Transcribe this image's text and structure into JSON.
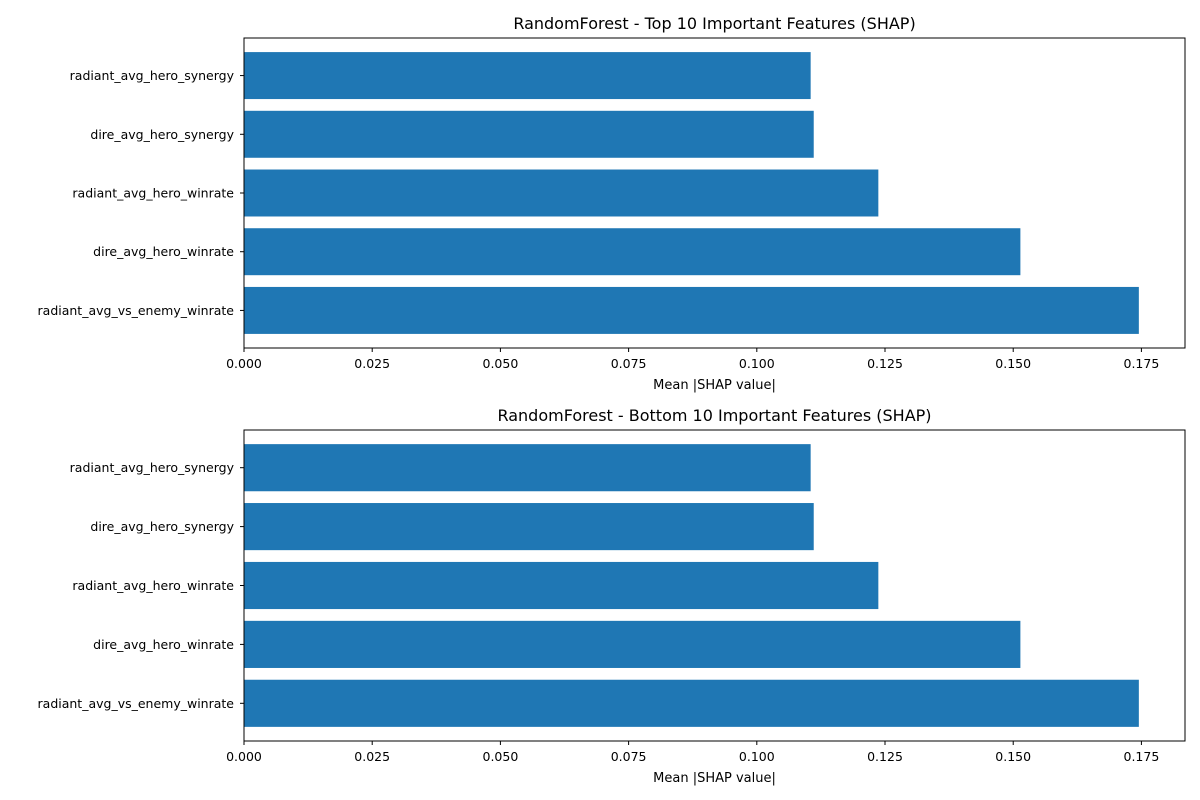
{
  "chart_data": [
    {
      "type": "bar",
      "orientation": "horizontal",
      "title": "RandomForest - Top 10 Important Features (SHAP)",
      "xlabel": "Mean |SHAP value|",
      "ylabel": "",
      "xlim": [
        0,
        0.1835
      ],
      "xticks": [
        "0.000",
        "0.025",
        "0.050",
        "0.075",
        "0.100",
        "0.125",
        "0.150",
        "0.175"
      ],
      "xtick_values": [
        0,
        0.025,
        0.05,
        0.075,
        0.1,
        0.125,
        0.15,
        0.175
      ],
      "grid": false,
      "bar_color": "#1f77b4",
      "categories": [
        "radiant_avg_hero_synergy",
        "dire_avg_hero_synergy",
        "radiant_avg_hero_winrate",
        "dire_avg_hero_winrate",
        "radiant_avg_vs_enemy_winrate"
      ],
      "values": [
        0.1105,
        0.1111,
        0.1237,
        0.1514,
        0.1745
      ]
    },
    {
      "type": "bar",
      "orientation": "horizontal",
      "title": "RandomForest - Bottom 10 Important Features (SHAP)",
      "xlabel": "Mean |SHAP value|",
      "ylabel": "",
      "xlim": [
        0,
        0.1835
      ],
      "xticks": [
        "0.000",
        "0.025",
        "0.050",
        "0.075",
        "0.100",
        "0.125",
        "0.150",
        "0.175"
      ],
      "xtick_values": [
        0,
        0.025,
        0.05,
        0.075,
        0.1,
        0.125,
        0.15,
        0.175
      ],
      "grid": false,
      "bar_color": "#1f77b4",
      "categories": [
        "radiant_avg_hero_synergy",
        "dire_avg_hero_synergy",
        "radiant_avg_hero_winrate",
        "dire_avg_hero_winrate",
        "radiant_avg_vs_enemy_winrate"
      ],
      "values": [
        0.1105,
        0.1111,
        0.1237,
        0.1514,
        0.1745
      ]
    }
  ]
}
